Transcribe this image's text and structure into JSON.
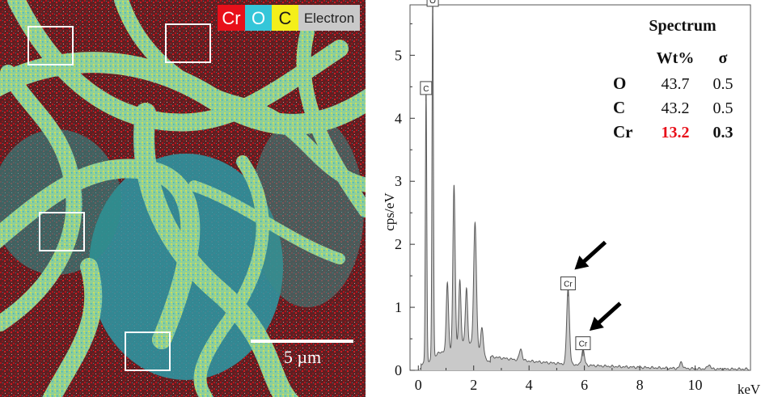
{
  "left_panel": {
    "legend": {
      "elements": [
        {
          "label": "Cr",
          "bg": "#e8101a",
          "fg": "#ffffff"
        },
        {
          "label": "O",
          "bg": "#35c6d9",
          "fg": "#ffffff"
        },
        {
          "label": "C",
          "bg": "#f4ef1a",
          "fg": "#1a1a1a"
        },
        {
          "label": "Electron",
          "bg": "#c9c9c9",
          "fg": "#222222"
        }
      ]
    },
    "scale_bar": "5 µm"
  },
  "chart_data": {
    "type": "area",
    "xlabel": "keV",
    "ylabel": "cps/eV",
    "xlim": [
      -0.3,
      12
    ],
    "ylim": [
      0,
      5.8
    ],
    "xticks": [
      0,
      2,
      4,
      6,
      8,
      10
    ],
    "yticks": [
      0,
      1,
      2,
      3,
      4,
      5
    ],
    "fill_color": "#c9c9c9",
    "line_color": "#5a5a5a",
    "peaks": [
      {
        "x": 0.28,
        "y": 4.3,
        "w": 0.025
      },
      {
        "x": 0.52,
        "y": 5.7,
        "w": 0.025
      },
      {
        "x": 1.05,
        "y": 1.1,
        "w": 0.04
      },
      {
        "x": 1.29,
        "y": 2.6,
        "w": 0.04
      },
      {
        "x": 1.5,
        "y": 1.0,
        "w": 0.04
      },
      {
        "x": 1.74,
        "y": 0.85,
        "w": 0.04
      },
      {
        "x": 2.05,
        "y": 2.0,
        "w": 0.05
      },
      {
        "x": 2.3,
        "y": 0.45,
        "w": 0.05
      },
      {
        "x": 3.7,
        "y": 0.18,
        "w": 0.05
      },
      {
        "x": 5.41,
        "y": 1.2,
        "w": 0.05
      },
      {
        "x": 5.95,
        "y": 0.25,
        "w": 0.05
      },
      {
        "x": 9.5,
        "y": 0.1,
        "w": 0.05
      },
      {
        "x": 10.5,
        "y": 0.07,
        "w": 0.05
      }
    ],
    "peak_labels": [
      {
        "label": "C",
        "x": 0.28,
        "y": 4.3
      },
      {
        "label": "O",
        "x": 0.52,
        "y": 5.7
      },
      {
        "label": "Cr",
        "x": 5.41,
        "y": 1.2
      },
      {
        "label": "Cr",
        "x": 5.95,
        "y": 0.25
      }
    ],
    "arrows": [
      {
        "target_x": 5.41,
        "target_y": 1.52
      },
      {
        "target_x": 5.95,
        "target_y": 0.55
      }
    ],
    "table": {
      "title": "Spectrum",
      "columns": [
        "",
        "Wt%",
        "σ"
      ],
      "rows": [
        {
          "element": "O",
          "wt": "43.7",
          "sigma": "0.5",
          "highlight": false
        },
        {
          "element": "C",
          "wt": "43.2",
          "sigma": "0.5",
          "highlight": false
        },
        {
          "element": "Cr",
          "wt": "13.2",
          "sigma": "0.3",
          "highlight": true
        }
      ],
      "highlight_color": "#e8101a"
    }
  }
}
